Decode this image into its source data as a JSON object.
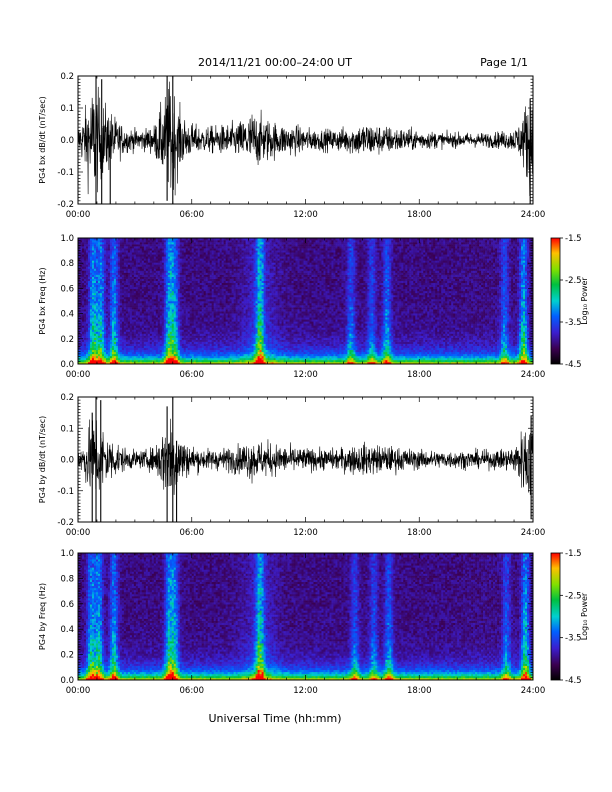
{
  "header": {
    "title": "2014/11/21  00:00–24:00 UT",
    "page": "Page 1/1"
  },
  "xlabel": "Universal Time (hh:mm)",
  "colorbar_label": "Log₁₀ Power",
  "chart_data": [
    {
      "type": "line",
      "ylabel": "PG4 bx dB/dt (nT/sec)",
      "xlim": [
        0,
        24
      ],
      "ylim": [
        -0.2,
        0.2
      ],
      "x_ticks": [
        "00:00",
        "06:00",
        "12:00",
        "18:00",
        "24:00"
      ],
      "y_ticks": [
        "-0.2",
        "-0.1",
        "0.0",
        "0.1",
        "0.2"
      ],
      "envelope": {
        "x_hours": [
          0,
          0.3,
          0.6,
          0.9,
          1.2,
          1.6,
          2.0,
          2.5,
          3.0,
          3.5,
          4.0,
          4.6,
          4.9,
          5.3,
          5.8,
          6.5,
          7.5,
          8.5,
          9.2,
          9.6,
          10.0,
          10.6,
          11.5,
          12.5,
          13.5,
          14.5,
          15.2,
          16.0,
          16.8,
          17.5,
          18.5,
          19.5,
          20.5,
          21.5,
          22.5,
          23.0,
          23.4,
          23.7,
          24.0
        ],
        "amplitude": [
          0.04,
          0.07,
          0.13,
          0.16,
          0.11,
          0.09,
          0.06,
          0.035,
          0.03,
          0.03,
          0.04,
          0.12,
          0.17,
          0.09,
          0.05,
          0.035,
          0.04,
          0.05,
          0.08,
          0.07,
          0.06,
          0.045,
          0.04,
          0.03,
          0.03,
          0.04,
          0.05,
          0.04,
          0.035,
          0.03,
          0.025,
          0.02,
          0.02,
          0.02,
          0.025,
          0.03,
          0.06,
          0.12,
          0.15
        ]
      },
      "spikes": [
        {
          "x_hours": 0.95,
          "min": -0.2,
          "max": 0.2
        },
        {
          "x_hours": 1.25,
          "min": -0.2,
          "max": 0.19
        },
        {
          "x_hours": 1.7,
          "min": -0.2,
          "max": 0.03
        },
        {
          "x_hours": 4.7,
          "min": -0.19,
          "max": 0.2
        },
        {
          "x_hours": 5.0,
          "min": -0.2,
          "max": 0.2
        },
        {
          "x_hours": 23.85,
          "min": -0.2,
          "max": 0.13
        }
      ]
    },
    {
      "type": "heatmap",
      "ylabel": "PG4 bx Freq (Hz)",
      "xlim": [
        0,
        24
      ],
      "ylim": [
        0.0,
        1.0
      ],
      "x_ticks": [
        "00:00",
        "06:00",
        "12:00",
        "18:00",
        "24:00"
      ],
      "y_ticks": [
        "0.0",
        "0.2",
        "0.4",
        "0.6",
        "0.8",
        "1.0"
      ],
      "color_range": [
        -4.5,
        -1.5
      ],
      "colorbar_ticks": [
        "-1.5",
        "-2.5",
        "-3.5",
        "-4.5"
      ],
      "activity_centers_hours": [
        0.8,
        1.2,
        1.9,
        4.8,
        5.1,
        9.6,
        14.4,
        15.5,
        16.3,
        22.5,
        23.5
      ],
      "activity_weights": [
        0.8,
        0.75,
        0.7,
        0.75,
        0.7,
        0.85,
        0.5,
        0.45,
        0.6,
        0.5,
        0.8
      ]
    },
    {
      "type": "line",
      "ylabel": "PG4 by dB/dt (nT/sec)",
      "xlim": [
        0,
        24
      ],
      "ylim": [
        -0.2,
        0.2
      ],
      "x_ticks": [
        "00:00",
        "06:00",
        "12:00",
        "18:00",
        "24:00"
      ],
      "y_ticks": [
        "-0.2",
        "-0.1",
        "0.0",
        "0.1",
        "0.2"
      ],
      "envelope": {
        "x_hours": [
          0,
          0.3,
          0.6,
          0.9,
          1.2,
          1.6,
          2.0,
          2.5,
          3.0,
          3.5,
          4.0,
          4.6,
          4.9,
          5.3,
          5.8,
          6.5,
          7.5,
          8.5,
          9.2,
          9.6,
          10.0,
          10.6,
          11.5,
          12.5,
          13.5,
          14.5,
          15.2,
          16.0,
          16.8,
          17.5,
          18.5,
          19.5,
          20.5,
          21.5,
          22.5,
          23.0,
          23.4,
          23.7,
          24.0
        ],
        "amplitude": [
          0.03,
          0.05,
          0.1,
          0.14,
          0.1,
          0.07,
          0.05,
          0.03,
          0.025,
          0.025,
          0.035,
          0.1,
          0.14,
          0.08,
          0.045,
          0.03,
          0.03,
          0.04,
          0.06,
          0.05,
          0.05,
          0.04,
          0.035,
          0.03,
          0.03,
          0.04,
          0.045,
          0.04,
          0.035,
          0.03,
          0.025,
          0.025,
          0.025,
          0.025,
          0.03,
          0.04,
          0.08,
          0.12,
          0.14
        ]
      },
      "spikes": [
        {
          "x_hours": 0.75,
          "min": -0.2,
          "max": 0.15
        },
        {
          "x_hours": 0.95,
          "min": -0.2,
          "max": 0.2
        },
        {
          "x_hours": 1.2,
          "min": -0.2,
          "max": 0.19
        },
        {
          "x_hours": 4.7,
          "min": -0.2,
          "max": 0.17
        },
        {
          "x_hours": 5.0,
          "min": -0.2,
          "max": 0.2
        },
        {
          "x_hours": 5.2,
          "min": -0.2,
          "max": 0.06
        },
        {
          "x_hours": 23.9,
          "min": -0.19,
          "max": 0.14
        }
      ]
    },
    {
      "type": "heatmap",
      "ylabel": "PG4 by Freq (Hz)",
      "xlim": [
        0,
        24
      ],
      "ylim": [
        0.0,
        1.0
      ],
      "x_ticks": [
        "00:00",
        "06:00",
        "12:00",
        "18:00",
        "24:00"
      ],
      "y_ticks": [
        "0.0",
        "0.2",
        "0.4",
        "0.6",
        "0.8",
        "1.0"
      ],
      "color_range": [
        -4.5,
        -1.5
      ],
      "colorbar_ticks": [
        "-1.5",
        "-2.5",
        "-3.5",
        "-4.5"
      ],
      "activity_centers_hours": [
        0.7,
        1.1,
        1.9,
        4.8,
        5.1,
        9.6,
        14.6,
        15.6,
        16.4,
        22.6,
        23.6
      ],
      "activity_weights": [
        0.75,
        0.75,
        0.7,
        0.75,
        0.7,
        0.85,
        0.45,
        0.45,
        0.55,
        0.5,
        0.8
      ]
    }
  ]
}
